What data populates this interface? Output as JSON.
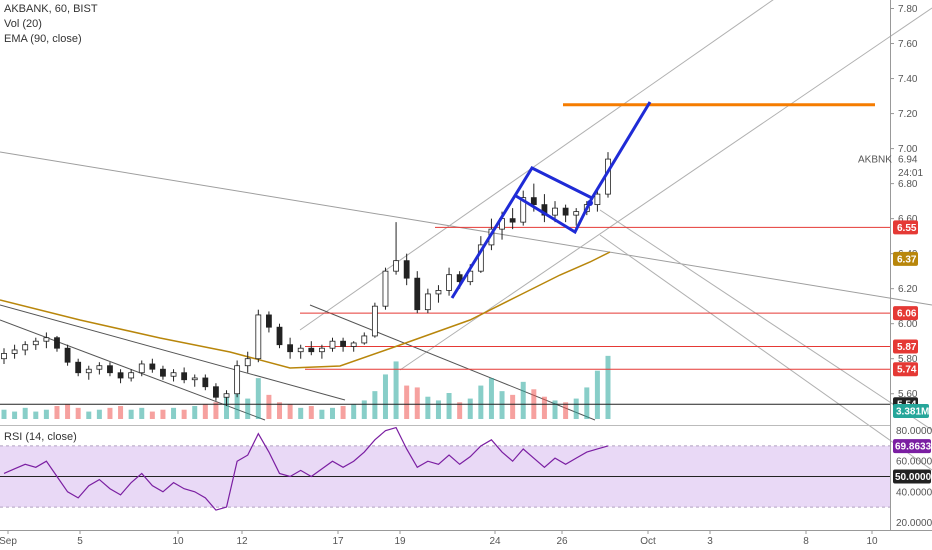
{
  "legend": {
    "symbol": "AKBANK, 60, BIST",
    "volume": "Vol (20)",
    "ema": "EMA (90, close)",
    "rsi": "RSI (14, close)"
  },
  "chart_data": {
    "type": "candlestick",
    "symbol": "AKBANK",
    "interval": "60",
    "exchange": "BIST",
    "price_axis": {
      "ticks": [
        "7.80",
        "7.60",
        "7.40",
        "7.20",
        "7.00",
        "6.80",
        "6.60",
        "6.40",
        "6.20",
        "6.00",
        "5.80",
        "5.60"
      ],
      "ylim": [
        5.45,
        7.82
      ]
    },
    "time_axis": {
      "labels": [
        "Sep",
        "5",
        "10",
        "12",
        "17",
        "19",
        "24",
        "26",
        "Oct",
        "3",
        "8",
        "10"
      ]
    },
    "last_price": {
      "label": "AKBNK",
      "value": "6.94",
      "countdown": "24:01"
    },
    "horizontal_levels": [
      {
        "value": "6.55",
        "color": "#e53935"
      },
      {
        "value": "6.06",
        "color": "#e53935"
      },
      {
        "value": "5.87",
        "color": "#e53935"
      },
      {
        "value": "5.74",
        "color": "#e53935"
      },
      {
        "value": "5.54",
        "color": "#222222"
      }
    ],
    "target_level": {
      "value": 7.25,
      "color": "#f57c00"
    },
    "ema": {
      "label": "EMA (90, close)",
      "value": "6.37",
      "color": "#b8860b"
    },
    "volume": {
      "label": "Vol (20)",
      "last": "3.381M",
      "up_color": "#26a69a",
      "down_color": "#ef5350"
    },
    "rsi": {
      "label": "RSI (14, close)",
      "value": "69.8633",
      "midline": "50.0000",
      "ticks": [
        "80.0000",
        "60.0000",
        "40.0000",
        "20.0000"
      ],
      "band": [
        30,
        70
      ],
      "color": "#7b1fa2"
    },
    "candles": [
      [
        5.8,
        5.86,
        5.77,
        5.83
      ],
      [
        5.83,
        5.88,
        5.8,
        5.85
      ],
      [
        5.85,
        5.9,
        5.82,
        5.88
      ],
      [
        5.88,
        5.92,
        5.85,
        5.9
      ],
      [
        5.9,
        5.95,
        5.86,
        5.92
      ],
      [
        5.92,
        5.93,
        5.84,
        5.86
      ],
      [
        5.86,
        5.88,
        5.76,
        5.78
      ],
      [
        5.78,
        5.8,
        5.7,
        5.72
      ],
      [
        5.72,
        5.76,
        5.68,
        5.74
      ],
      [
        5.74,
        5.78,
        5.71,
        5.76
      ],
      [
        5.76,
        5.78,
        5.7,
        5.72
      ],
      [
        5.72,
        5.74,
        5.66,
        5.69
      ],
      [
        5.69,
        5.74,
        5.67,
        5.72
      ],
      [
        5.72,
        5.79,
        5.7,
        5.77
      ],
      [
        5.77,
        5.8,
        5.72,
        5.74
      ],
      [
        5.74,
        5.76,
        5.68,
        5.7
      ],
      [
        5.7,
        5.74,
        5.67,
        5.72
      ],
      [
        5.72,
        5.75,
        5.66,
        5.68
      ],
      [
        5.68,
        5.71,
        5.64,
        5.69
      ],
      [
        5.69,
        5.71,
        5.62,
        5.64
      ],
      [
        5.64,
        5.66,
        5.56,
        5.58
      ],
      [
        5.58,
        5.62,
        5.53,
        5.6
      ],
      [
        5.6,
        5.79,
        5.58,
        5.76
      ],
      [
        5.76,
        5.84,
        5.72,
        5.8
      ],
      [
        5.8,
        6.08,
        5.78,
        6.05
      ],
      [
        6.05,
        6.07,
        5.95,
        5.98
      ],
      [
        5.98,
        6.0,
        5.86,
        5.88
      ],
      [
        5.88,
        5.92,
        5.8,
        5.84
      ],
      [
        5.84,
        5.88,
        5.8,
        5.86
      ],
      [
        5.86,
        5.9,
        5.82,
        5.84
      ],
      [
        5.84,
        5.88,
        5.8,
        5.86
      ],
      [
        5.86,
        5.92,
        5.84,
        5.9
      ],
      [
        5.9,
        5.92,
        5.84,
        5.87
      ],
      [
        5.87,
        5.9,
        5.84,
        5.89
      ],
      [
        5.89,
        5.95,
        5.88,
        5.93
      ],
      [
        5.93,
        6.12,
        5.92,
        6.1
      ],
      [
        6.1,
        6.32,
        6.08,
        6.3
      ],
      [
        6.3,
        6.58,
        6.28,
        6.36
      ],
      [
        6.36,
        6.4,
        6.22,
        6.26
      ],
      [
        6.26,
        6.3,
        6.06,
        6.08
      ],
      [
        6.08,
        6.2,
        6.06,
        6.17
      ],
      [
        6.17,
        6.22,
        6.12,
        6.19
      ],
      [
        6.19,
        6.32,
        6.16,
        6.28
      ],
      [
        6.28,
        6.3,
        6.2,
        6.24
      ],
      [
        6.24,
        6.34,
        6.22,
        6.3
      ],
      [
        6.3,
        6.5,
        6.29,
        6.45
      ],
      [
        6.45,
        6.6,
        6.42,
        6.54
      ],
      [
        6.54,
        6.64,
        6.48,
        6.6
      ],
      [
        6.6,
        6.66,
        6.54,
        6.58
      ],
      [
        6.58,
        6.76,
        6.56,
        6.72
      ],
      [
        6.72,
        6.8,
        6.64,
        6.68
      ],
      [
        6.68,
        6.74,
        6.58,
        6.62
      ],
      [
        6.62,
        6.7,
        6.58,
        6.66
      ],
      [
        6.66,
        6.68,
        6.58,
        6.62
      ],
      [
        6.62,
        6.66,
        6.56,
        6.64
      ],
      [
        6.64,
        6.7,
        6.62,
        6.68
      ],
      [
        6.68,
        6.76,
        6.64,
        6.74
      ],
      [
        6.74,
        6.98,
        6.72,
        6.94
      ]
    ],
    "volumes": [
      0.5,
      0.4,
      0.6,
      0.4,
      0.5,
      0.7,
      0.8,
      0.6,
      0.4,
      0.5,
      0.6,
      0.7,
      0.5,
      0.6,
      0.4,
      0.5,
      0.6,
      0.5,
      0.7,
      0.8,
      0.9,
      1.2,
      1.6,
      1.1,
      2.2,
      1.3,
      0.9,
      0.8,
      0.6,
      0.7,
      0.5,
      0.6,
      0.7,
      0.8,
      1.0,
      1.5,
      2.4,
      3.1,
      1.8,
      1.7,
      1.2,
      1.0,
      1.4,
      0.9,
      1.1,
      1.8,
      2.2,
      1.5,
      1.3,
      2.0,
      1.6,
      1.2,
      1.0,
      0.9,
      1.1,
      1.7,
      2.6,
      3.4
    ],
    "rsi_values": [
      52,
      55,
      58,
      56,
      60,
      50,
      40,
      36,
      44,
      48,
      42,
      38,
      46,
      52,
      44,
      40,
      46,
      42,
      40,
      36,
      28,
      30,
      60,
      64,
      78,
      66,
      52,
      50,
      54,
      50,
      55,
      60,
      56,
      60,
      66,
      74,
      80,
      82,
      68,
      56,
      60,
      58,
      64,
      58,
      63,
      70,
      74,
      66,
      60,
      68,
      62,
      56,
      62,
      58,
      62,
      66,
      68,
      70
    ]
  }
}
